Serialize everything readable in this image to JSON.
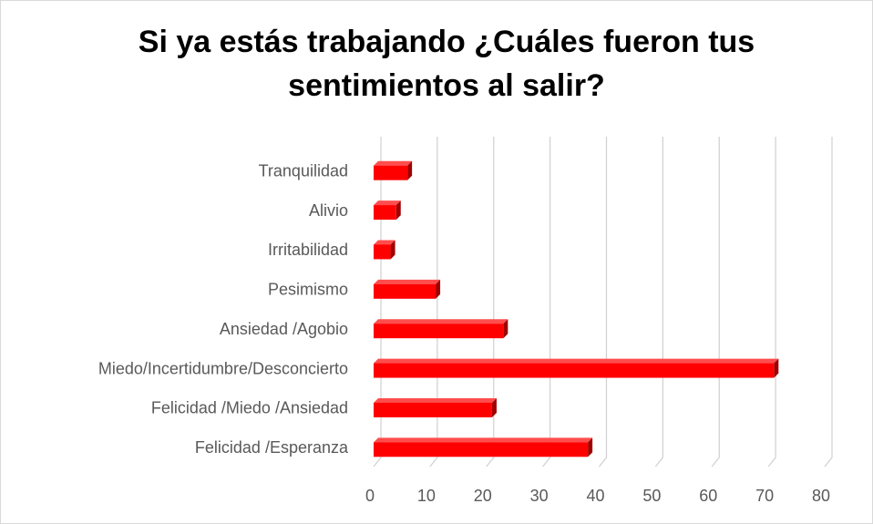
{
  "chart_data": {
    "type": "hbar3d",
    "title": "Si ya estás trabajando ¿Cuáles fueron tus sentimientos al salir?",
    "categories": [
      "Tranquilidad",
      "Alivio",
      "Irritabilidad",
      "Pesimismo",
      "Ansiedad /Agobio",
      "Miedo/Incertidumbre/Desconcierto",
      "Felicidad /Miedo /Ansiedad",
      "Felicidad /Esperanza"
    ],
    "values": [
      6,
      4,
      3,
      11,
      23,
      71,
      21,
      38
    ],
    "color": "#ff0000",
    "xlim": [
      0,
      80
    ],
    "xticks": [
      0,
      10,
      20,
      30,
      40,
      50,
      60,
      70,
      80
    ],
    "grid": true
  }
}
